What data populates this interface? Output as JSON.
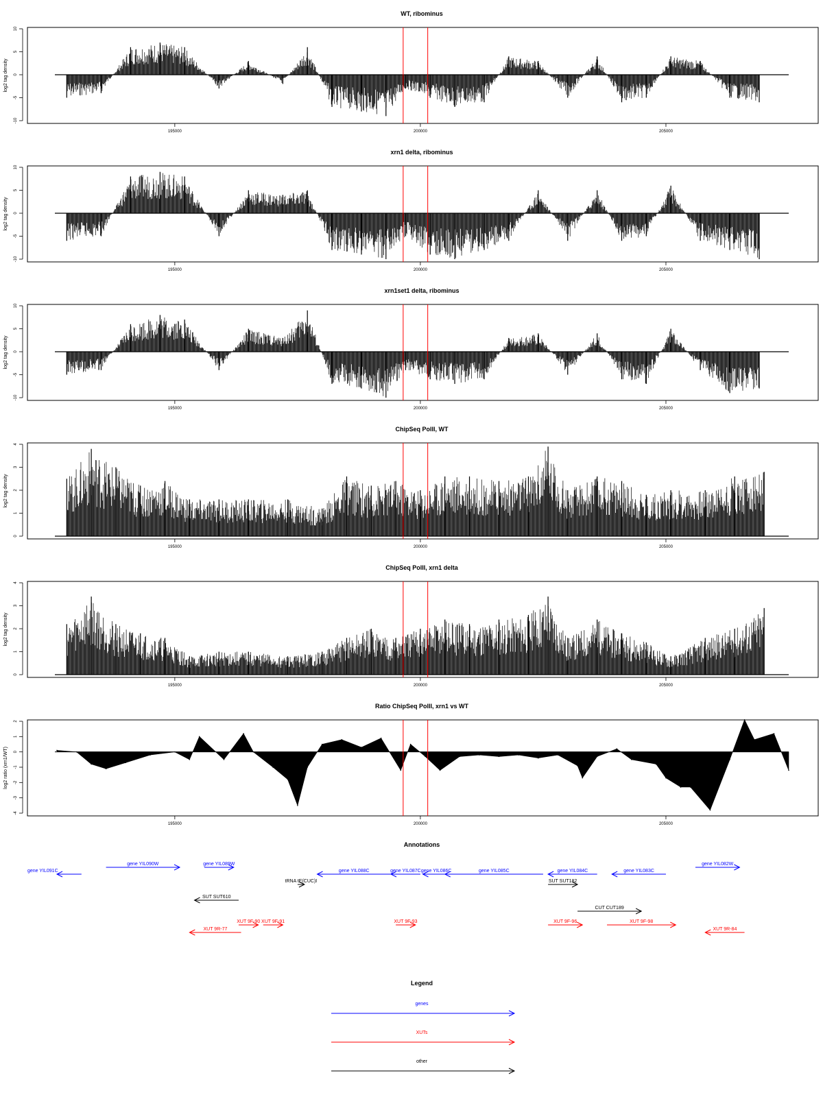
{
  "figure": {
    "genomic_xticks": [
      195000,
      200000,
      205000
    ],
    "markers": [
      199650,
      200150
    ],
    "colors": {
      "data": "#000000",
      "marker": "#ff0000",
      "gene": "#0000ff",
      "xut": "#ff0000",
      "other": "#000000"
    }
  },
  "chart_data": [
    {
      "type": "bar",
      "title": "WT, ribominus",
      "ylabel": "log2 tag density",
      "ylim": [
        -10,
        10
      ],
      "yticks": [
        "-10",
        "-5",
        "0",
        "5",
        "10"
      ],
      "xlim": [
        192600,
        207500
      ],
      "x": [
        192800,
        193500,
        194100,
        194700,
        195200,
        195900,
        196500,
        197200,
        197700,
        198200,
        198800,
        199300,
        199700,
        200200,
        200700,
        201300,
        201800,
        202400,
        203000,
        203600,
        204100,
        204600,
        205100,
        205700,
        206300,
        206900
      ],
      "values": [
        -5,
        -4,
        6,
        7,
        6,
        -3,
        3,
        -2,
        6,
        -7,
        -8,
        -9,
        -3,
        -5,
        -7,
        -6,
        4,
        3,
        -5,
        4,
        -6,
        -5,
        4,
        3,
        -5,
        -6
      ]
    },
    {
      "type": "bar",
      "title": "xrn1 delta, ribominus",
      "ylabel": "log2 tag density",
      "ylim": [
        -10,
        10
      ],
      "yticks": [
        "-10",
        "-5",
        "0",
        "5",
        "10"
      ],
      "xlim": [
        192600,
        207500
      ],
      "x": [
        192800,
        193500,
        194100,
        194700,
        195200,
        195900,
        196500,
        197200,
        197700,
        198200,
        198800,
        199300,
        199700,
        200200,
        200700,
        201300,
        201800,
        202400,
        203000,
        203600,
        204100,
        204600,
        205100,
        205700,
        206300,
        206900
      ],
      "values": [
        -6,
        -5,
        8,
        9,
        8,
        -5,
        5,
        4,
        5,
        -8,
        -9,
        -10,
        -5,
        -9,
        -10,
        -8,
        -6,
        5,
        -6,
        5,
        -6,
        -5,
        6,
        -6,
        -8,
        -10
      ]
    },
    {
      "type": "bar",
      "title": "xrn1set1 delta, ribominus",
      "ylabel": "log2 tag density",
      "ylim": [
        -10,
        10
      ],
      "yticks": [
        "-10",
        "-5",
        "0",
        "5",
        "10"
      ],
      "xlim": [
        192600,
        207500
      ],
      "x": [
        192800,
        193500,
        194100,
        194700,
        195200,
        195900,
        196500,
        197200,
        197700,
        198200,
        198800,
        199300,
        199700,
        200200,
        200700,
        201300,
        201800,
        202400,
        203000,
        203600,
        204100,
        204600,
        205100,
        205700,
        206300,
        206900
      ],
      "values": [
        -5,
        -4,
        6,
        8,
        7,
        -4,
        5,
        3,
        9,
        -7,
        -8,
        -10,
        -4,
        -6,
        -7,
        -6,
        3,
        4,
        -5,
        4,
        -6,
        -7,
        5,
        -4,
        -9,
        -8
      ]
    },
    {
      "type": "bar",
      "title": "ChipSeq PolII, WT",
      "ylabel": "log2 tag density",
      "ylim": [
        0,
        4
      ],
      "yticks": [
        "0",
        "1",
        "2",
        "3",
        "4"
      ],
      "xlim": [
        192600,
        207500
      ],
      "x": [
        192800,
        193300,
        193800,
        194300,
        194800,
        195300,
        195900,
        196500,
        197300,
        198000,
        198500,
        199000,
        199500,
        200000,
        200500,
        201000,
        201600,
        202200,
        202600,
        203000,
        203600,
        204100,
        204600,
        205100,
        205800,
        206400,
        207000
      ],
      "values": [
        2.5,
        3.8,
        3.0,
        2.2,
        2.4,
        1.6,
        1.6,
        1.6,
        1.6,
        1.2,
        2.6,
        2.2,
        2.4,
        2.0,
        2.6,
        2.6,
        2.4,
        2.6,
        3.9,
        2.0,
        2.6,
        2.4,
        1.8,
        2.0,
        2.0,
        2.6,
        2.8
      ]
    },
    {
      "type": "bar",
      "title": "ChipSeq PolII, xrn1 delta",
      "ylabel": "log2 tag density",
      "ylim": [
        0,
        4
      ],
      "yticks": [
        "0",
        "1",
        "2",
        "3",
        "4"
      ],
      "xlim": [
        192600,
        207500
      ],
      "x": [
        192800,
        193300,
        193800,
        194300,
        194800,
        195300,
        195900,
        196500,
        197300,
        198000,
        198500,
        199000,
        199500,
        200000,
        200500,
        201000,
        201600,
        202200,
        202600,
        203000,
        203600,
        204100,
        204600,
        205100,
        205800,
        206400,
        207000
      ],
      "values": [
        2.2,
        3.4,
        2.2,
        1.8,
        1.6,
        0.8,
        1.0,
        1.0,
        0.8,
        1.0,
        1.6,
        2.0,
        1.6,
        2.0,
        2.4,
        2.2,
        2.4,
        2.6,
        3.4,
        1.6,
        2.4,
        1.8,
        1.4,
        0.8,
        1.6,
        2.0,
        2.9
      ]
    },
    {
      "type": "area",
      "title": "Ratio ChipSeq PolII, xrn1 vs WT",
      "ylabel": "log2 ratio (xrn1/WT)",
      "ylim": [
        -4,
        2
      ],
      "yticks": [
        "-4",
        "-3",
        "-2",
        "-1",
        "0",
        "1",
        "2"
      ],
      "xlim": [
        192600,
        207500
      ],
      "x": [
        192600,
        193000,
        193300,
        193600,
        194000,
        194500,
        195000,
        195300,
        195500,
        196000,
        196400,
        196600,
        197000,
        197300,
        197500,
        197700,
        198000,
        198400,
        198800,
        199200,
        199600,
        199800,
        200100,
        200400,
        200800,
        201200,
        201600,
        202000,
        202400,
        202800,
        203200,
        203300,
        203600,
        204000,
        204300,
        204800,
        205000,
        205300,
        205500,
        205900,
        206300,
        206600,
        206800,
        207200,
        207500
      ],
      "values": [
        0.1,
        0,
        -0.8,
        -1.1,
        -0.7,
        -0.2,
        0,
        -0.5,
        1.0,
        -0.5,
        1.2,
        0,
        -1.0,
        -1.8,
        -3.5,
        -1.0,
        0.5,
        0.8,
        0.3,
        0.9,
        -1.2,
        0.5,
        -0.3,
        -1.2,
        -0.3,
        -0.2,
        -0.3,
        -0.2,
        -0.4,
        -0.2,
        -0.9,
        -1.7,
        -0.3,
        0.2,
        -0.5,
        -0.8,
        -1.7,
        -2.3,
        -2.3,
        -3.8,
        -0.5,
        2.1,
        0.8,
        1.2,
        -1.2
      ]
    }
  ],
  "annotations": {
    "title": "Annotations",
    "items": [
      {
        "label": "gene YIL091C",
        "type": "gene",
        "start": 192600,
        "end": 193100,
        "dir": "left",
        "row": 1
      },
      {
        "label": "gene YIL090W",
        "type": "gene",
        "start": 193600,
        "end": 195100,
        "dir": "right",
        "row": 0
      },
      {
        "label": "gene YIL089W",
        "type": "gene",
        "start": 195600,
        "end": 196200,
        "dir": "right",
        "row": 0
      },
      {
        "label": "tRNA tE(CUC)I",
        "type": "other",
        "start": 197500,
        "end": 197600,
        "dir": "right",
        "row": 2
      },
      {
        "label": "gene YIL088C",
        "type": "gene",
        "start": 197900,
        "end": 199400,
        "dir": "left",
        "row": 1
      },
      {
        "label": "gene YIL087C",
        "type": "gene",
        "start": 199400,
        "end": 200000,
        "dir": "left",
        "row": 1
      },
      {
        "label": "gene YIL086C",
        "type": "gene",
        "start": 200050,
        "end": 200600,
        "dir": "left",
        "row": 1
      },
      {
        "label": "gene YIL085C",
        "type": "gene",
        "start": 200500,
        "end": 202500,
        "dir": "left",
        "row": 1
      },
      {
        "label": "gene YIL084C",
        "type": "gene",
        "start": 202600,
        "end": 203600,
        "dir": "left",
        "row": 1
      },
      {
        "label": "gene YIL083C",
        "type": "gene",
        "start": 203900,
        "end": 205000,
        "dir": "left",
        "row": 1
      },
      {
        "label": "gene YIL082W",
        "type": "gene",
        "start": 205600,
        "end": 206500,
        "dir": "right",
        "row": 0
      },
      {
        "label": "SUT SUT610",
        "type": "other",
        "start": 195400,
        "end": 196300,
        "dir": "left",
        "row": 3
      },
      {
        "label": "SUT SUT182",
        "type": "other",
        "start": 202600,
        "end": 203200,
        "dir": "right",
        "row": 2
      },
      {
        "label": "CUT CUT189",
        "type": "other",
        "start": 203200,
        "end": 204500,
        "dir": "right",
        "row": 4
      },
      {
        "label": "XUT 9R-77",
        "type": "xut",
        "start": 195300,
        "end": 196350,
        "dir": "left",
        "row": 6
      },
      {
        "label": "XUT 9F-90",
        "type": "xut",
        "start": 196300,
        "end": 196700,
        "dir": "right",
        "row": 5
      },
      {
        "label": "XUT 9F-91",
        "type": "xut",
        "start": 196800,
        "end": 197200,
        "dir": "right",
        "row": 5
      },
      {
        "label": "XUT 9F-93",
        "type": "xut",
        "start": 199500,
        "end": 199900,
        "dir": "right",
        "row": 5
      },
      {
        "label": "XUT 9F-96",
        "type": "xut",
        "start": 202600,
        "end": 203300,
        "dir": "right",
        "row": 5
      },
      {
        "label": "XUT 9F-98",
        "type": "xut",
        "start": 203800,
        "end": 205200,
        "dir": "right",
        "row": 5
      },
      {
        "label": "XUT 9R-84",
        "type": "xut",
        "start": 205800,
        "end": 206600,
        "dir": "left",
        "row": 6
      }
    ]
  },
  "legend": {
    "title": "Legend",
    "items": [
      {
        "label": "genes",
        "type": "gene"
      },
      {
        "label": "XUTs",
        "type": "xut"
      },
      {
        "label": "other",
        "type": "other"
      }
    ]
  }
}
